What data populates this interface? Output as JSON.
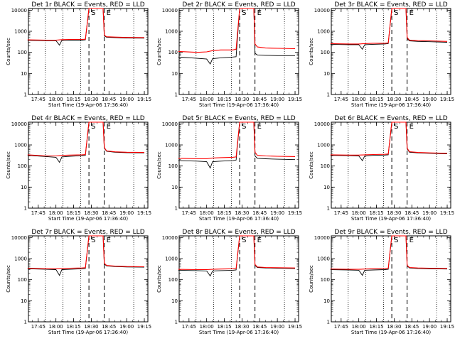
{
  "figure": {
    "xlabel": "Start Time (19-Apr-06 17:36:40)",
    "ylabel": "Counts/sec",
    "x_tick_labels": [
      "17:45",
      "18:00",
      "18:15",
      "18:30",
      "18:45",
      "19:00",
      "19:15"
    ],
    "y_tick_labels": [
      "1",
      "10",
      "100",
      "1000",
      "10000"
    ],
    "event_markers": [
      "S",
      "E"
    ],
    "colors": {
      "events": "#000000",
      "lld": "#ff0000",
      "background": "#ffffff"
    }
  },
  "chart_data": [
    {
      "type": "line",
      "title": "Det 1r BLACK = Events, RED = LLD",
      "ylim": [
        1,
        12000
      ],
      "log_y": true,
      "x_range": [
        "17:36:40",
        "19:18:00"
      ],
      "dotted_vlines": [
        "17:51",
        "18:06",
        "18:21",
        "19:06"
      ],
      "dashed_vlines": [
        "18:28",
        "18:41"
      ],
      "series": [
        {
          "name": "Events",
          "x": [
            "17:36",
            "17:52",
            "18:00",
            "18:03",
            "18:05",
            "18:12",
            "18:22",
            "18:25",
            "18:28",
            "18:40",
            "18:41",
            "18:43",
            "18:50",
            "19:00",
            "19:15"
          ],
          "y": [
            370,
            360,
            360,
            220,
            370,
            380,
            380,
            390,
            12000,
            12000,
            600,
            520,
            500,
            480,
            470
          ]
        },
        {
          "name": "LLD",
          "x": [
            "17:36",
            "17:52",
            "18:00",
            "18:05",
            "18:12",
            "18:22",
            "18:25",
            "18:28",
            "18:40",
            "18:41",
            "18:43",
            "18:50",
            "19:00",
            "19:15"
          ],
          "y": [
            390,
            380,
            380,
            400,
            410,
            410,
            420,
            12000,
            12000,
            650,
            550,
            530,
            510,
            500
          ]
        }
      ]
    },
    {
      "type": "line",
      "title": "Det 2r BLACK = Events, RED = LLD",
      "ylim": [
        1,
        12000
      ],
      "log_y": true,
      "x_range": [
        "17:36:40",
        "19:18:00"
      ],
      "dotted_vlines": [
        "17:51",
        "18:06",
        "18:21",
        "19:06"
      ],
      "dashed_vlines": [
        "18:28",
        "18:41"
      ],
      "series": [
        {
          "name": "Events",
          "x": [
            "17:36",
            "17:52",
            "18:00",
            "18:03",
            "18:05",
            "18:12",
            "18:22",
            "18:25",
            "18:28",
            "18:40",
            "18:41",
            "18:43",
            "18:50",
            "19:00",
            "19:15"
          ],
          "y": [
            60,
            52,
            48,
            28,
            50,
            55,
            60,
            62,
            12000,
            12000,
            90,
            75,
            72,
            70,
            70
          ]
        },
        {
          "name": "LLD",
          "x": [
            "17:36",
            "17:52",
            "18:00",
            "18:05",
            "18:12",
            "18:22",
            "18:25",
            "18:28",
            "18:40",
            "18:41",
            "18:43",
            "18:50",
            "19:00",
            "19:15"
          ],
          "y": [
            110,
            100,
            105,
            120,
            130,
            130,
            140,
            12000,
            12000,
            250,
            180,
            160,
            155,
            150
          ]
        }
      ]
    },
    {
      "type": "line",
      "title": "Det 3r BLACK = Events, RED = LLD",
      "ylim": [
        1,
        12000
      ],
      "log_y": true,
      "x_range": [
        "17:36:40",
        "19:18:00"
      ],
      "dotted_vlines": [
        "17:51",
        "18:06",
        "18:21",
        "19:06"
      ],
      "dashed_vlines": [
        "18:28",
        "18:41"
      ],
      "series": [
        {
          "name": "Events",
          "x": [
            "17:36",
            "17:52",
            "18:00",
            "18:03",
            "18:05",
            "18:12",
            "18:22",
            "18:25",
            "18:28",
            "18:40",
            "18:41",
            "18:43",
            "18:50",
            "19:00",
            "19:15"
          ],
          "y": [
            240,
            230,
            230,
            140,
            230,
            240,
            250,
            260,
            12000,
            12000,
            450,
            350,
            330,
            320,
            300
          ]
        },
        {
          "name": "LLD",
          "x": [
            "17:36",
            "17:52",
            "18:00",
            "18:05",
            "18:12",
            "18:22",
            "18:25",
            "18:28",
            "18:40",
            "18:41",
            "18:43",
            "18:50",
            "19:00",
            "19:15"
          ],
          "y": [
            260,
            250,
            250,
            260,
            270,
            270,
            280,
            12000,
            12000,
            500,
            380,
            360,
            350,
            330
          ]
        }
      ]
    },
    {
      "type": "line",
      "title": "Det 4r BLACK = Events, RED = LLD",
      "ylim": [
        1,
        12000
      ],
      "log_y": true,
      "x_range": [
        "17:36:40",
        "19:18:00"
      ],
      "dotted_vlines": [
        "17:51",
        "18:06",
        "18:21",
        "19:06"
      ],
      "dashed_vlines": [
        "18:28",
        "18:41"
      ],
      "series": [
        {
          "name": "Events",
          "x": [
            "17:36",
            "17:52",
            "18:00",
            "18:03",
            "18:05",
            "18:12",
            "18:22",
            "18:25",
            "18:28",
            "18:40",
            "18:41",
            "18:43",
            "18:50",
            "19:00",
            "19:15"
          ],
          "y": [
            320,
            280,
            260,
            150,
            270,
            290,
            310,
            320,
            12000,
            12000,
            700,
            500,
            450,
            430,
            420
          ]
        },
        {
          "name": "LLD",
          "x": [
            "17:36",
            "17:52",
            "18:00",
            "18:05",
            "18:12",
            "18:22",
            "18:25",
            "18:28",
            "18:40",
            "18:41",
            "18:43",
            "18:50",
            "19:00",
            "19:15"
          ],
          "y": [
            340,
            300,
            300,
            320,
            330,
            340,
            350,
            12000,
            12000,
            750,
            520,
            470,
            450,
            440
          ]
        }
      ]
    },
    {
      "type": "line",
      "title": "Det 5r BLACK = Events, RED = LLD",
      "ylim": [
        1,
        12000
      ],
      "log_y": true,
      "x_range": [
        "17:36:40",
        "19:18:00"
      ],
      "dotted_vlines": [
        "17:51",
        "18:06",
        "18:21",
        "19:06"
      ],
      "dashed_vlines": [
        "18:28",
        "18:41"
      ],
      "series": [
        {
          "name": "Events",
          "x": [
            "17:36",
            "17:52",
            "18:00",
            "18:03",
            "18:05",
            "18:12",
            "18:22",
            "18:25",
            "18:28",
            "18:40",
            "18:41",
            "18:43",
            "18:50",
            "19:00",
            "19:15"
          ],
          "y": [
            180,
            170,
            160,
            80,
            160,
            170,
            180,
            190,
            12000,
            12000,
            300,
            230,
            220,
            210,
            200
          ]
        },
        {
          "name": "LLD",
          "x": [
            "17:36",
            "17:52",
            "18:00",
            "18:05",
            "18:12",
            "18:22",
            "18:25",
            "18:28",
            "18:40",
            "18:41",
            "18:43",
            "18:50",
            "19:00",
            "19:15"
          ],
          "y": [
            230,
            220,
            220,
            240,
            250,
            260,
            270,
            12000,
            12000,
            450,
            320,
            300,
            290,
            280
          ]
        }
      ]
    },
    {
      "type": "line",
      "title": "Det 6r BLACK = Events, RED = LLD",
      "ylim": [
        1,
        12000
      ],
      "log_y": true,
      "x_range": [
        "17:36:40",
        "19:18:00"
      ],
      "dotted_vlines": [
        "17:51",
        "18:06",
        "18:21",
        "19:06"
      ],
      "dashed_vlines": [
        "18:28",
        "18:41"
      ],
      "series": [
        {
          "name": "Events",
          "x": [
            "17:36",
            "17:52",
            "18:00",
            "18:03",
            "18:05",
            "18:12",
            "18:22",
            "18:25",
            "18:28",
            "18:40",
            "18:41",
            "18:43",
            "18:50",
            "19:00",
            "19:15"
          ],
          "y": [
            320,
            310,
            300,
            180,
            300,
            320,
            330,
            340,
            12000,
            12000,
            650,
            450,
            420,
            400,
            380
          ]
        },
        {
          "name": "LLD",
          "x": [
            "17:36",
            "17:52",
            "18:00",
            "18:05",
            "18:12",
            "18:22",
            "18:25",
            "18:28",
            "18:40",
            "18:41",
            "18:43",
            "18:50",
            "19:00",
            "19:15"
          ],
          "y": [
            340,
            330,
            330,
            340,
            350,
            360,
            370,
            12000,
            12000,
            700,
            480,
            440,
            420,
            400
          ]
        }
      ]
    },
    {
      "type": "line",
      "title": "Det 7r BLACK = Events, RED = LLD",
      "ylim": [
        1,
        12000
      ],
      "log_y": true,
      "x_range": [
        "17:36:40",
        "19:18:00"
      ],
      "dotted_vlines": [
        "17:51",
        "18:06",
        "18:21",
        "19:06"
      ],
      "dashed_vlines": [
        "18:28",
        "18:41"
      ],
      "series": [
        {
          "name": "Events",
          "x": [
            "17:36",
            "17:52",
            "18:00",
            "18:03",
            "18:05",
            "18:12",
            "18:22",
            "18:25",
            "18:28",
            "18:40",
            "18:41",
            "18:43",
            "18:50",
            "19:00",
            "19:15"
          ],
          "y": [
            330,
            310,
            300,
            160,
            300,
            310,
            330,
            340,
            12000,
            12000,
            550,
            450,
            420,
            400,
            390
          ]
        },
        {
          "name": "LLD",
          "x": [
            "17:36",
            "17:52",
            "18:00",
            "18:05",
            "18:12",
            "18:22",
            "18:25",
            "18:28",
            "18:40",
            "18:41",
            "18:43",
            "18:50",
            "19:00",
            "19:15"
          ],
          "y": [
            350,
            330,
            330,
            340,
            350,
            360,
            370,
            12000,
            12000,
            600,
            470,
            440,
            420,
            410
          ]
        }
      ]
    },
    {
      "type": "line",
      "title": "Det 8r BLACK = Events, RED = LLD",
      "ylim": [
        1,
        12000
      ],
      "log_y": true,
      "x_range": [
        "17:36:40",
        "19:18:00"
      ],
      "dotted_vlines": [
        "17:51",
        "18:06",
        "18:21",
        "19:06"
      ],
      "dashed_vlines": [
        "18:28",
        "18:41"
      ],
      "series": [
        {
          "name": "Events",
          "x": [
            "17:36",
            "17:52",
            "18:00",
            "18:03",
            "18:05",
            "18:12",
            "18:22",
            "18:25",
            "18:28",
            "18:40",
            "18:41",
            "18:43",
            "18:50",
            "19:00",
            "19:15"
          ],
          "y": [
            280,
            270,
            260,
            150,
            260,
            270,
            280,
            290,
            12000,
            12000,
            480,
            380,
            360,
            350,
            340
          ]
        },
        {
          "name": "LLD",
          "x": [
            "17:36",
            "17:52",
            "18:00",
            "18:05",
            "18:12",
            "18:22",
            "18:25",
            "18:28",
            "18:40",
            "18:41",
            "18:43",
            "18:50",
            "19:00",
            "19:15"
          ],
          "y": [
            310,
            300,
            300,
            310,
            320,
            330,
            340,
            12000,
            12000,
            520,
            400,
            380,
            370,
            360
          ]
        }
      ]
    },
    {
      "type": "line",
      "title": "Det 9r BLACK = Events, RED = LLD",
      "ylim": [
        1,
        12000
      ],
      "log_y": true,
      "x_range": [
        "17:36:40",
        "19:18:00"
      ],
      "dotted_vlines": [
        "17:51",
        "18:06",
        "18:21",
        "19:06"
      ],
      "dashed_vlines": [
        "18:28",
        "18:41"
      ],
      "series": [
        {
          "name": "Events",
          "x": [
            "17:36",
            "17:52",
            "18:00",
            "18:03",
            "18:05",
            "18:12",
            "18:22",
            "18:25",
            "18:28",
            "18:40",
            "18:41",
            "18:43",
            "18:50",
            "19:00",
            "19:15"
          ],
          "y": [
            300,
            290,
            280,
            160,
            280,
            290,
            300,
            310,
            12000,
            12000,
            450,
            360,
            340,
            330,
            320
          ]
        },
        {
          "name": "LLD",
          "x": [
            "17:36",
            "17:52",
            "18:00",
            "18:05",
            "18:12",
            "18:22",
            "18:25",
            "18:28",
            "18:40",
            "18:41",
            "18:43",
            "18:50",
            "19:00",
            "19:15"
          ],
          "y": [
            320,
            310,
            310,
            320,
            330,
            340,
            350,
            12000,
            12000,
            480,
            380,
            360,
            350,
            340
          ]
        }
      ]
    }
  ]
}
